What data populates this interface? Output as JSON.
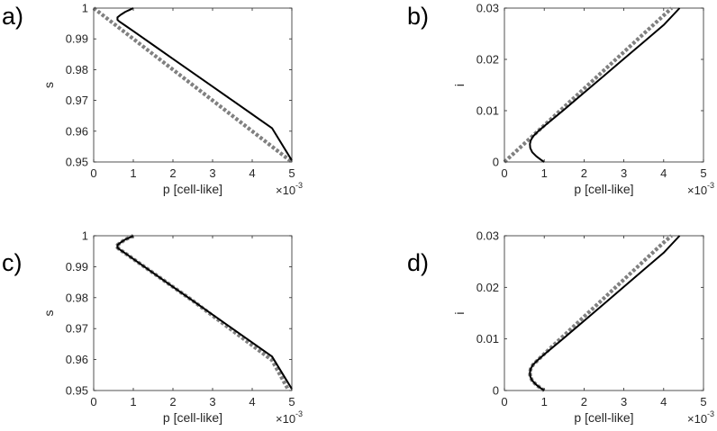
{
  "chart_data": [
    {
      "type": "line",
      "panel_label": "a)",
      "xlabel": "p [cell-like]",
      "ylabel": "s",
      "x_exponent_base": "×10",
      "x_exponent": "-3",
      "xlim": [
        0,
        5
      ],
      "ylim": [
        0.95,
        1
      ],
      "xticks": [
        "0",
        "1",
        "2",
        "3",
        "4",
        "5"
      ],
      "yticks": [
        "0.95",
        "0.96",
        "0.97",
        "0.98",
        "0.99",
        "1"
      ],
      "series": [
        {
          "style": "solid-black",
          "x": [
            1.0,
            0.92,
            0.8,
            0.68,
            0.6,
            0.6,
            0.64,
            0.8,
            1.0,
            1.5,
            2.0,
            2.5,
            3.0,
            3.5,
            4.0,
            4.5,
            5.0
          ],
          "y": [
            1.0,
            0.9995,
            0.9988,
            0.9978,
            0.997,
            0.9962,
            0.9957,
            0.9943,
            0.9925,
            0.988,
            0.9835,
            0.979,
            0.9745,
            0.97,
            0.9655,
            0.961,
            0.9505
          ]
        },
        {
          "style": "dotted-gray",
          "x": [
            0.0,
            5.0
          ],
          "y": [
            1.0,
            0.95
          ]
        }
      ]
    },
    {
      "type": "line",
      "panel_label": "b)",
      "xlabel": "p [cell-like]",
      "ylabel": "i",
      "x_exponent_base": "×10",
      "x_exponent": "-3",
      "xlim": [
        0,
        5
      ],
      "ylim": [
        0,
        0.03
      ],
      "xticks": [
        "0",
        "1",
        "2",
        "3",
        "4",
        "5"
      ],
      "yticks": [
        "0",
        "0.01",
        "0.02",
        "0.03"
      ],
      "series": [
        {
          "style": "solid-black",
          "x": [
            1.0,
            0.92,
            0.8,
            0.7,
            0.65,
            0.64,
            0.66,
            0.72,
            0.85,
            1.0,
            1.5,
            2.0,
            2.5,
            3.0,
            3.5,
            4.0,
            4.4
          ],
          "y": [
            0.0,
            0.0004,
            0.0011,
            0.0019,
            0.0027,
            0.0035,
            0.0042,
            0.005,
            0.006,
            0.007,
            0.0102,
            0.0135,
            0.0168,
            0.0201,
            0.0234,
            0.0267,
            0.03
          ]
        },
        {
          "style": "dotted-gray",
          "x": [
            0.0,
            4.2
          ],
          "y": [
            0.0,
            0.03
          ]
        }
      ]
    },
    {
      "type": "line",
      "panel_label": "c)",
      "xlabel": "p [cell-like]",
      "ylabel": "s",
      "x_exponent_base": "×10",
      "x_exponent": "-3",
      "xlim": [
        0,
        5
      ],
      "ylim": [
        0.95,
        1
      ],
      "xticks": [
        "0",
        "1",
        "2",
        "3",
        "4",
        "5"
      ],
      "yticks": [
        "0.95",
        "0.96",
        "0.97",
        "0.98",
        "0.99",
        "1"
      ],
      "series": [
        {
          "style": "solid-black",
          "x": [
            1.0,
            0.92,
            0.8,
            0.68,
            0.6,
            0.6,
            0.64,
            0.8,
            1.0,
            1.5,
            2.0,
            2.5,
            3.0,
            3.5,
            4.0,
            4.5,
            5.0
          ],
          "y": [
            1.0,
            0.9995,
            0.9988,
            0.9978,
            0.997,
            0.9962,
            0.9957,
            0.9943,
            0.9925,
            0.988,
            0.9835,
            0.979,
            0.9745,
            0.97,
            0.9655,
            0.961,
            0.9505
          ]
        },
        {
          "style": "dotted-gray",
          "x": [
            1.0,
            0.92,
            0.8,
            0.68,
            0.6,
            0.6,
            0.64,
            0.8,
            1.0,
            1.5,
            2.0,
            2.5,
            3.0,
            3.5,
            4.0,
            4.5,
            4.9
          ],
          "y": [
            1.0,
            0.9995,
            0.9988,
            0.9978,
            0.997,
            0.9962,
            0.9957,
            0.9943,
            0.9925,
            0.988,
            0.9835,
            0.979,
            0.9742,
            0.9694,
            0.9646,
            0.9598,
            0.9505
          ]
        }
      ]
    },
    {
      "type": "line",
      "panel_label": "d)",
      "xlabel": "p [cell-like]",
      "ylabel": "i",
      "x_exponent_base": "×10",
      "x_exponent": "-3",
      "xlim": [
        0,
        5
      ],
      "ylim": [
        0,
        0.03
      ],
      "xticks": [
        "0",
        "1",
        "2",
        "3",
        "4",
        "5"
      ],
      "yticks": [
        "0",
        "0.01",
        "0.02",
        "0.03"
      ],
      "series": [
        {
          "style": "solid-black",
          "x": [
            1.0,
            0.92,
            0.8,
            0.7,
            0.65,
            0.64,
            0.66,
            0.72,
            0.85,
            1.0,
            1.5,
            2.0,
            2.5,
            3.0,
            3.5,
            4.0,
            4.4
          ],
          "y": [
            0.0,
            0.0004,
            0.0011,
            0.0019,
            0.0027,
            0.0035,
            0.0042,
            0.005,
            0.006,
            0.007,
            0.0102,
            0.0135,
            0.0168,
            0.0201,
            0.0234,
            0.0267,
            0.03
          ]
        },
        {
          "style": "dotted-gray",
          "x": [
            1.0,
            0.92,
            0.8,
            0.7,
            0.65,
            0.64,
            0.66,
            0.72,
            0.85,
            1.0,
            1.5,
            2.0,
            2.5,
            3.0,
            3.5,
            4.0,
            4.2
          ],
          "y": [
            0.0,
            0.0004,
            0.0011,
            0.0019,
            0.0027,
            0.0035,
            0.0042,
            0.005,
            0.006,
            0.0071,
            0.0107,
            0.0143,
            0.0179,
            0.0215,
            0.0251,
            0.0287,
            0.03
          ]
        }
      ]
    }
  ],
  "colors": {
    "solid_series": "#000000",
    "dotted_series": "#808080",
    "axes": "#262626"
  }
}
